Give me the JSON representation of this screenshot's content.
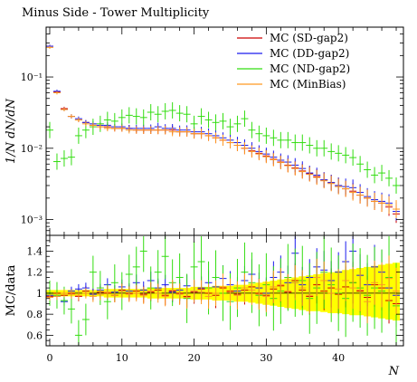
{
  "title": "Minus Side - Tower Multiplicity",
  "ylabel_main": "1/N dN/dN",
  "ylabel_ratio": "MC/data",
  "xlabel": "N",
  "legend_placement": "top-right",
  "chart_data": [
    {
      "type": "scatter",
      "panel": "main",
      "yscale": "log",
      "xlim": [
        -0.5,
        49
      ],
      "ylim": [
        0.0006,
        0.5
      ],
      "xticks": [
        "0",
        "10",
        "20",
        "30",
        "40"
      ],
      "yticks": [
        "10⁻¹",
        "10⁻²",
        "10⁻³"
      ],
      "ytick_values": [
        0.1,
        0.01,
        0.001
      ],
      "x": [
        0,
        1,
        2,
        3,
        4,
        5,
        6,
        7,
        8,
        9,
        10,
        11,
        12,
        13,
        14,
        15,
        16,
        17,
        18,
        19,
        20,
        21,
        22,
        23,
        24,
        25,
        26,
        27,
        28,
        29,
        30,
        31,
        32,
        33,
        34,
        35,
        36,
        37,
        38,
        39,
        40,
        41,
        42,
        43,
        44,
        45,
        46,
        47,
        48
      ],
      "series": [
        {
          "name": "MC (SD-gap2)",
          "color": "#cc0000",
          "values": [
            0.27,
            0.062,
            0.036,
            0.028,
            0.025,
            0.023,
            0.021,
            0.02,
            0.02,
            0.019,
            0.019,
            0.019,
            0.018,
            0.018,
            0.018,
            0.018,
            0.018,
            0.018,
            0.017,
            0.017,
            0.016,
            0.016,
            0.015,
            0.014,
            0.013,
            0.012,
            0.011,
            0.01,
            0.0092,
            0.0085,
            0.0078,
            0.007,
            0.0064,
            0.0058,
            0.0053,
            0.0048,
            0.0044,
            0.004,
            0.0036,
            0.0033,
            0.003,
            0.0027,
            0.0025,
            0.0022,
            0.002,
            0.0018,
            0.0017,
            0.0015,
            0.0012
          ]
        },
        {
          "name": "MC (DD-gap2)",
          "color": "#1a1aee",
          "values": [
            0.27,
            0.063,
            0.035,
            0.028,
            0.026,
            0.023,
            0.022,
            0.021,
            0.021,
            0.02,
            0.02,
            0.019,
            0.019,
            0.019,
            0.019,
            0.02,
            0.019,
            0.019,
            0.018,
            0.018,
            0.017,
            0.017,
            0.016,
            0.015,
            0.014,
            0.013,
            0.012,
            0.011,
            0.01,
            0.009,
            0.0083,
            0.0075,
            0.0068,
            0.0064,
            0.0058,
            0.0052,
            0.0045,
            0.0042,
            0.0036,
            0.0033,
            0.003,
            0.0029,
            0.0028,
            0.0024,
            0.0021,
            0.0019,
            0.0018,
            0.0017,
            0.0013
          ]
        },
        {
          "name": "MC (ND-gap2)",
          "color": "#33dd11",
          "values": [
            0.018,
            0.0065,
            0.0072,
            0.0075,
            0.015,
            0.018,
            0.02,
            0.022,
            0.025,
            0.024,
            0.027,
            0.029,
            0.028,
            0.027,
            0.032,
            0.03,
            0.033,
            0.034,
            0.031,
            0.03,
            0.022,
            0.028,
            0.025,
            0.023,
            0.024,
            0.02,
            0.022,
            0.026,
            0.018,
            0.016,
            0.015,
            0.014,
            0.013,
            0.013,
            0.012,
            0.012,
            0.011,
            0.01,
            0.01,
            0.009,
            0.0085,
            0.008,
            0.0074,
            0.006,
            0.005,
            0.0042,
            0.0045,
            0.0038,
            0.003
          ]
        },
        {
          "name": "MC (MinBias)",
          "color": "#ff9922",
          "values": [
            0.26,
            0.06,
            0.035,
            0.028,
            0.025,
            0.022,
            0.021,
            0.02,
            0.019,
            0.019,
            0.019,
            0.018,
            0.018,
            0.018,
            0.018,
            0.018,
            0.018,
            0.017,
            0.017,
            0.017,
            0.016,
            0.016,
            0.015,
            0.014,
            0.013,
            0.012,
            0.011,
            0.01,
            0.009,
            0.0083,
            0.0076,
            0.0069,
            0.0063,
            0.0057,
            0.0052,
            0.0047,
            0.0043,
            0.0039,
            0.0035,
            0.0032,
            0.0029,
            0.0027,
            0.0024,
            0.0022,
            0.002,
            0.0018,
            0.0017,
            0.0016,
            0.0014
          ]
        }
      ]
    },
    {
      "type": "scatter",
      "panel": "ratio",
      "xlim": [
        -0.5,
        49
      ],
      "ylim": [
        0.5,
        1.55
      ],
      "xticks": [
        "0",
        "10",
        "20",
        "30",
        "40"
      ],
      "yticks": [
        "0.6",
        "0.8",
        "1",
        "1.2",
        "1.4"
      ],
      "ytick_values": [
        0.6,
        0.8,
        1.0,
        1.2,
        1.4
      ],
      "data_band": {
        "color": "#ffff00",
        "upper": [
          1.03,
          1.03,
          1.03,
          1.03,
          1.03,
          1.03,
          1.03,
          1.03,
          1.04,
          1.04,
          1.04,
          1.04,
          1.04,
          1.04,
          1.05,
          1.05,
          1.05,
          1.05,
          1.05,
          1.05,
          1.06,
          1.06,
          1.06,
          1.07,
          1.07,
          1.07,
          1.08,
          1.08,
          1.09,
          1.1,
          1.11,
          1.12,
          1.13,
          1.14,
          1.15,
          1.16,
          1.17,
          1.18,
          1.19,
          1.2,
          1.21,
          1.22,
          1.23,
          1.24,
          1.25,
          1.26,
          1.27,
          1.28,
          1.29
        ],
        "lower": [
          0.97,
          0.97,
          0.97,
          0.97,
          0.97,
          0.97,
          0.97,
          0.97,
          0.96,
          0.96,
          0.96,
          0.96,
          0.96,
          0.96,
          0.95,
          0.95,
          0.95,
          0.95,
          0.95,
          0.95,
          0.94,
          0.94,
          0.94,
          0.93,
          0.93,
          0.93,
          0.92,
          0.92,
          0.91,
          0.9,
          0.89,
          0.88,
          0.87,
          0.86,
          0.85,
          0.84,
          0.83,
          0.83,
          0.82,
          0.81,
          0.81,
          0.8,
          0.79,
          0.79,
          0.78,
          0.77,
          0.76,
          0.75,
          0.74
        ]
      },
      "x": [
        0,
        1,
        2,
        3,
        4,
        5,
        6,
        7,
        8,
        9,
        10,
        11,
        12,
        13,
        14,
        15,
        16,
        17,
        18,
        19,
        20,
        21,
        22,
        23,
        24,
        25,
        26,
        27,
        28,
        29,
        30,
        31,
        32,
        33,
        34,
        35,
        36,
        37,
        38,
        39,
        40,
        41,
        42,
        43,
        44,
        45,
        46,
        47,
        48
      ],
      "series": [
        {
          "name": "MC (SD-gap2)",
          "color": "#cc0000",
          "values": [
            0.97,
            1.0,
            0.98,
            1.0,
            0.97,
            1.02,
            0.99,
            1.01,
            1.0,
            0.98,
            1.03,
            1.0,
            1.02,
            0.99,
            1.01,
            1.03,
            0.98,
            1.02,
            1.0,
            0.97,
            1.01,
            1.04,
            1.0,
            0.98,
            1.05,
            1.02,
            0.99,
            1.03,
            1.06,
            1.0,
            0.98,
            1.04,
            1.07,
            1.01,
            1.12,
            1.03,
            0.97,
            1.08,
            1.02,
            1.05,
            0.99,
            1.06,
            1.1,
            1.02,
            0.96,
            1.08,
            1.05,
            0.93,
            0.9
          ]
        },
        {
          "name": "MC (DD-gap2)",
          "color": "#1a1aee",
          "values": [
            0.98,
            0.97,
            0.92,
            1.02,
            1.04,
            1.05,
            0.99,
            1.03,
            1.08,
            1.01,
            1.06,
            1.02,
            1.1,
            1.03,
            1.12,
            1.05,
            1.08,
            1.01,
            1.03,
            1.07,
            1.02,
            1.05,
            1.1,
            1.06,
            1.14,
            1.08,
            1.02,
            1.12,
            1.18,
            1.05,
            1.0,
            1.15,
            1.2,
            1.1,
            1.38,
            1.08,
            1.15,
            1.25,
            1.22,
            1.12,
            1.2,
            1.3,
            1.4,
            1.17,
            1.08,
            1.25,
            1.2,
            1.05,
            0.98
          ]
        },
        {
          "name": "MC (ND-gap2)",
          "color": "#33dd11",
          "values": [
            1.0,
            0.98,
            0.93,
            0.85,
            0.6,
            0.75,
            1.2,
            1.05,
            0.92,
            1.1,
            1.02,
            1.18,
            1.25,
            1.4,
            1.05,
            1.2,
            1.35,
            1.1,
            1.15,
            0.95,
            1.25,
            1.3,
            1.05,
            1.15,
            1.0,
            0.92,
            1.05,
            1.2,
            1.1,
            0.98,
            1.08,
            0.95,
            1.02,
            1.15,
            1.1,
            1.12,
            0.95,
            1.05,
            1.2,
            1.08,
            1.0,
            0.95,
            1.1,
            1.05,
            0.98,
            1.05,
            1.02,
            1.15,
            0.88
          ]
        },
        {
          "name": "MC (MinBias)",
          "color": "#ff9922",
          "values": [
            0.96,
            0.97,
            1.0,
            0.99,
            0.98,
            1.0,
            0.97,
            0.99,
            1.01,
            0.98,
            1.02,
            0.99,
            1.0,
            0.98,
            1.02,
            1.0,
            0.97,
            1.03,
            0.99,
            0.96,
            1.02,
            1.01,
            0.97,
            1.0,
            1.06,
            1.01,
            0.98,
            1.05,
            1.03,
            0.99,
            0.97,
            1.06,
            1.08,
            1.02,
            1.1,
            1.05,
            0.98,
            1.15,
            1.12,
            1.0,
            1.04,
            1.12,
            1.05,
            1.03,
            0.92,
            1.1,
            1.08,
            1.14,
            1.02
          ]
        }
      ]
    }
  ]
}
